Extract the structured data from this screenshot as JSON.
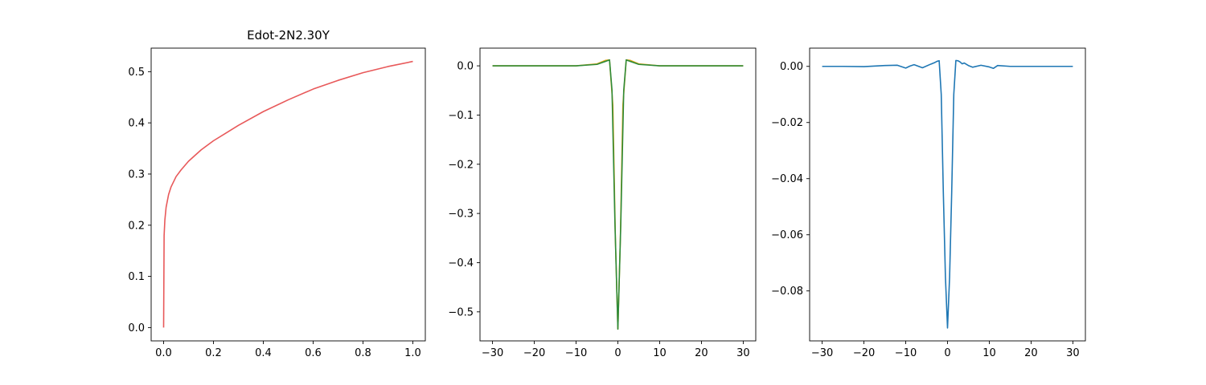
{
  "chart_data": [
    {
      "type": "line",
      "title": "Edot-2N2.30Y",
      "xlabel": "",
      "ylabel": "",
      "xlim": [
        -0.05,
        1.05
      ],
      "ylim": [
        -0.026,
        0.546
      ],
      "xticks": [
        0.0,
        0.2,
        0.4,
        0.6,
        0.8,
        1.0
      ],
      "xtick_labels": [
        "0.0",
        "0.2",
        "0.4",
        "0.6",
        "0.8",
        "1.0"
      ],
      "yticks": [
        0.0,
        0.1,
        0.2,
        0.3,
        0.4,
        0.5
      ],
      "ytick_labels": [
        "0.0",
        "0.1",
        "0.2",
        "0.3",
        "0.4",
        "0.5"
      ],
      "grid": false,
      "series": [
        {
          "color": "#e8595a",
          "x": [
            0.0,
            0.002,
            0.005,
            0.01,
            0.02,
            0.03,
            0.05,
            0.07,
            0.1,
            0.15,
            0.2,
            0.25,
            0.3,
            0.4,
            0.5,
            0.6,
            0.7,
            0.8,
            0.9,
            1.0
          ],
          "y": [
            0.0,
            0.18,
            0.21,
            0.235,
            0.26,
            0.275,
            0.295,
            0.308,
            0.325,
            0.347,
            0.365,
            0.38,
            0.395,
            0.422,
            0.445,
            0.466,
            0.483,
            0.498,
            0.51,
            0.52
          ]
        }
      ]
    },
    {
      "type": "line",
      "title": "",
      "xlabel": "",
      "ylabel": "",
      "xlim": [
        -33,
        33
      ],
      "ylim": [
        -0.559,
        0.036
      ],
      "xticks": [
        -30,
        -20,
        -10,
        0,
        10,
        20,
        30
      ],
      "xtick_labels": [
        "−30",
        "−20",
        "−10",
        "0",
        "10",
        "20",
        "30"
      ],
      "yticks": [
        0.0,
        -0.1,
        -0.2,
        -0.3,
        -0.4,
        -0.5
      ],
      "ytick_labels": [
        "0.0",
        "−0.1",
        "−0.2",
        "−0.3",
        "−0.4",
        "−0.5"
      ],
      "grid": false,
      "series": [
        {
          "color": "#e6a817",
          "x": [
            -30,
            -10,
            -5,
            -3,
            -2,
            -1.2,
            -0.6,
            0,
            0.6,
            1.2,
            2,
            3,
            5,
            10,
            30
          ],
          "y": [
            0.0,
            0.0,
            0.004,
            0.011,
            0.012,
            -0.08,
            -0.35,
            -0.535,
            -0.35,
            -0.08,
            0.012,
            0.011,
            0.004,
            0.0,
            0.0
          ]
        },
        {
          "color": "#2e8b3a",
          "x": [
            -30,
            -10,
            -5,
            -3,
            -2,
            -1.4,
            -0.7,
            0,
            0.7,
            1.4,
            2,
            3,
            5,
            10,
            30
          ],
          "y": [
            0.0,
            0.0,
            0.003,
            0.009,
            0.012,
            -0.05,
            -0.32,
            -0.535,
            -0.32,
            -0.05,
            0.012,
            0.009,
            0.003,
            0.0,
            0.0
          ]
        }
      ]
    },
    {
      "type": "line",
      "title": "",
      "xlabel": "",
      "ylabel": "",
      "xlim": [
        -33,
        33
      ],
      "ylim": [
        -0.0978,
        0.0065
      ],
      "xticks": [
        -30,
        -20,
        -10,
        0,
        10,
        20,
        30
      ],
      "xtick_labels": [
        "−30",
        "−20",
        "−10",
        "0",
        "10",
        "20",
        "30"
      ],
      "yticks": [
        0.0,
        -0.02,
        -0.04,
        -0.06,
        -0.08
      ],
      "ytick_labels": [
        "0.00",
        "−0.02",
        "−0.04",
        "−0.06",
        "−0.08"
      ],
      "grid": false,
      "series": [
        {
          "color": "#1f77b4",
          "x": [
            -30,
            -25,
            -20,
            -15,
            -12,
            -10,
            -9,
            -8,
            -6,
            -4,
            -3,
            -2.5,
            -2,
            -1.5,
            -1,
            -0.5,
            0,
            0.5,
            1,
            1.5,
            2,
            2.5,
            3,
            3.5,
            4,
            5,
            6,
            8,
            10,
            11,
            12,
            15,
            20,
            25,
            30
          ],
          "y": [
            0.0,
            0.0,
            -0.0001,
            0.0003,
            0.0004,
            -0.0006,
            0.0001,
            0.0006,
            -0.0005,
            0.0008,
            0.0014,
            0.0018,
            0.002,
            -0.01,
            -0.045,
            -0.075,
            -0.0932,
            -0.075,
            -0.045,
            -0.01,
            0.0021,
            0.002,
            0.0016,
            0.0009,
            0.0012,
            0.0003,
            -0.0003,
            0.0004,
            -0.0002,
            -0.0007,
            0.0003,
            0.0,
            0.0,
            0.0,
            0.0
          ]
        }
      ]
    }
  ]
}
